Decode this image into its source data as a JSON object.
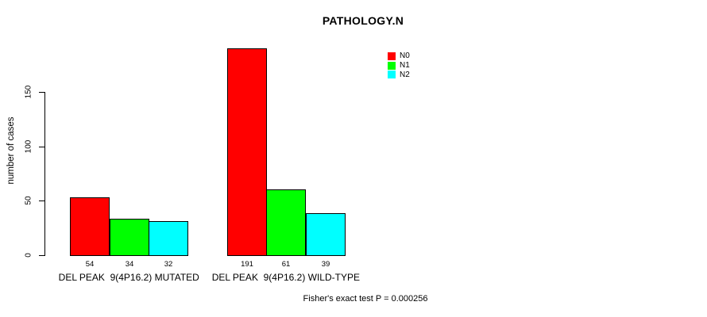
{
  "chart_data": {
    "type": "bar",
    "title": "PATHOLOGY.N",
    "ylabel": "number of cases",
    "xlabel": "",
    "categories": [
      "DEL PEAK  9(4P16.2) MUTATED",
      "DEL PEAK  9(4P16.2) WILD-TYPE"
    ],
    "series": [
      {
        "name": "N0",
        "color": "#ff0000",
        "values": [
          54,
          191
        ]
      },
      {
        "name": "N1",
        "color": "#00ff00",
        "values": [
          34,
          61
        ]
      },
      {
        "name": "N2",
        "color": "#00ffff",
        "values": [
          32,
          39
        ]
      }
    ],
    "value_labels": {
      "group1": [
        "54",
        "34",
        "32"
      ],
      "group2": [
        "191",
        "61",
        "39"
      ]
    },
    "yticks": [
      0,
      50,
      100,
      150
    ],
    "ylim": [
      0,
      200
    ],
    "grid": false,
    "legend_position": "top-right",
    "bar_border_color": "#000000",
    "background_color": "#ffffff",
    "annotation": "Fisher's exact test P = 0.000256"
  }
}
